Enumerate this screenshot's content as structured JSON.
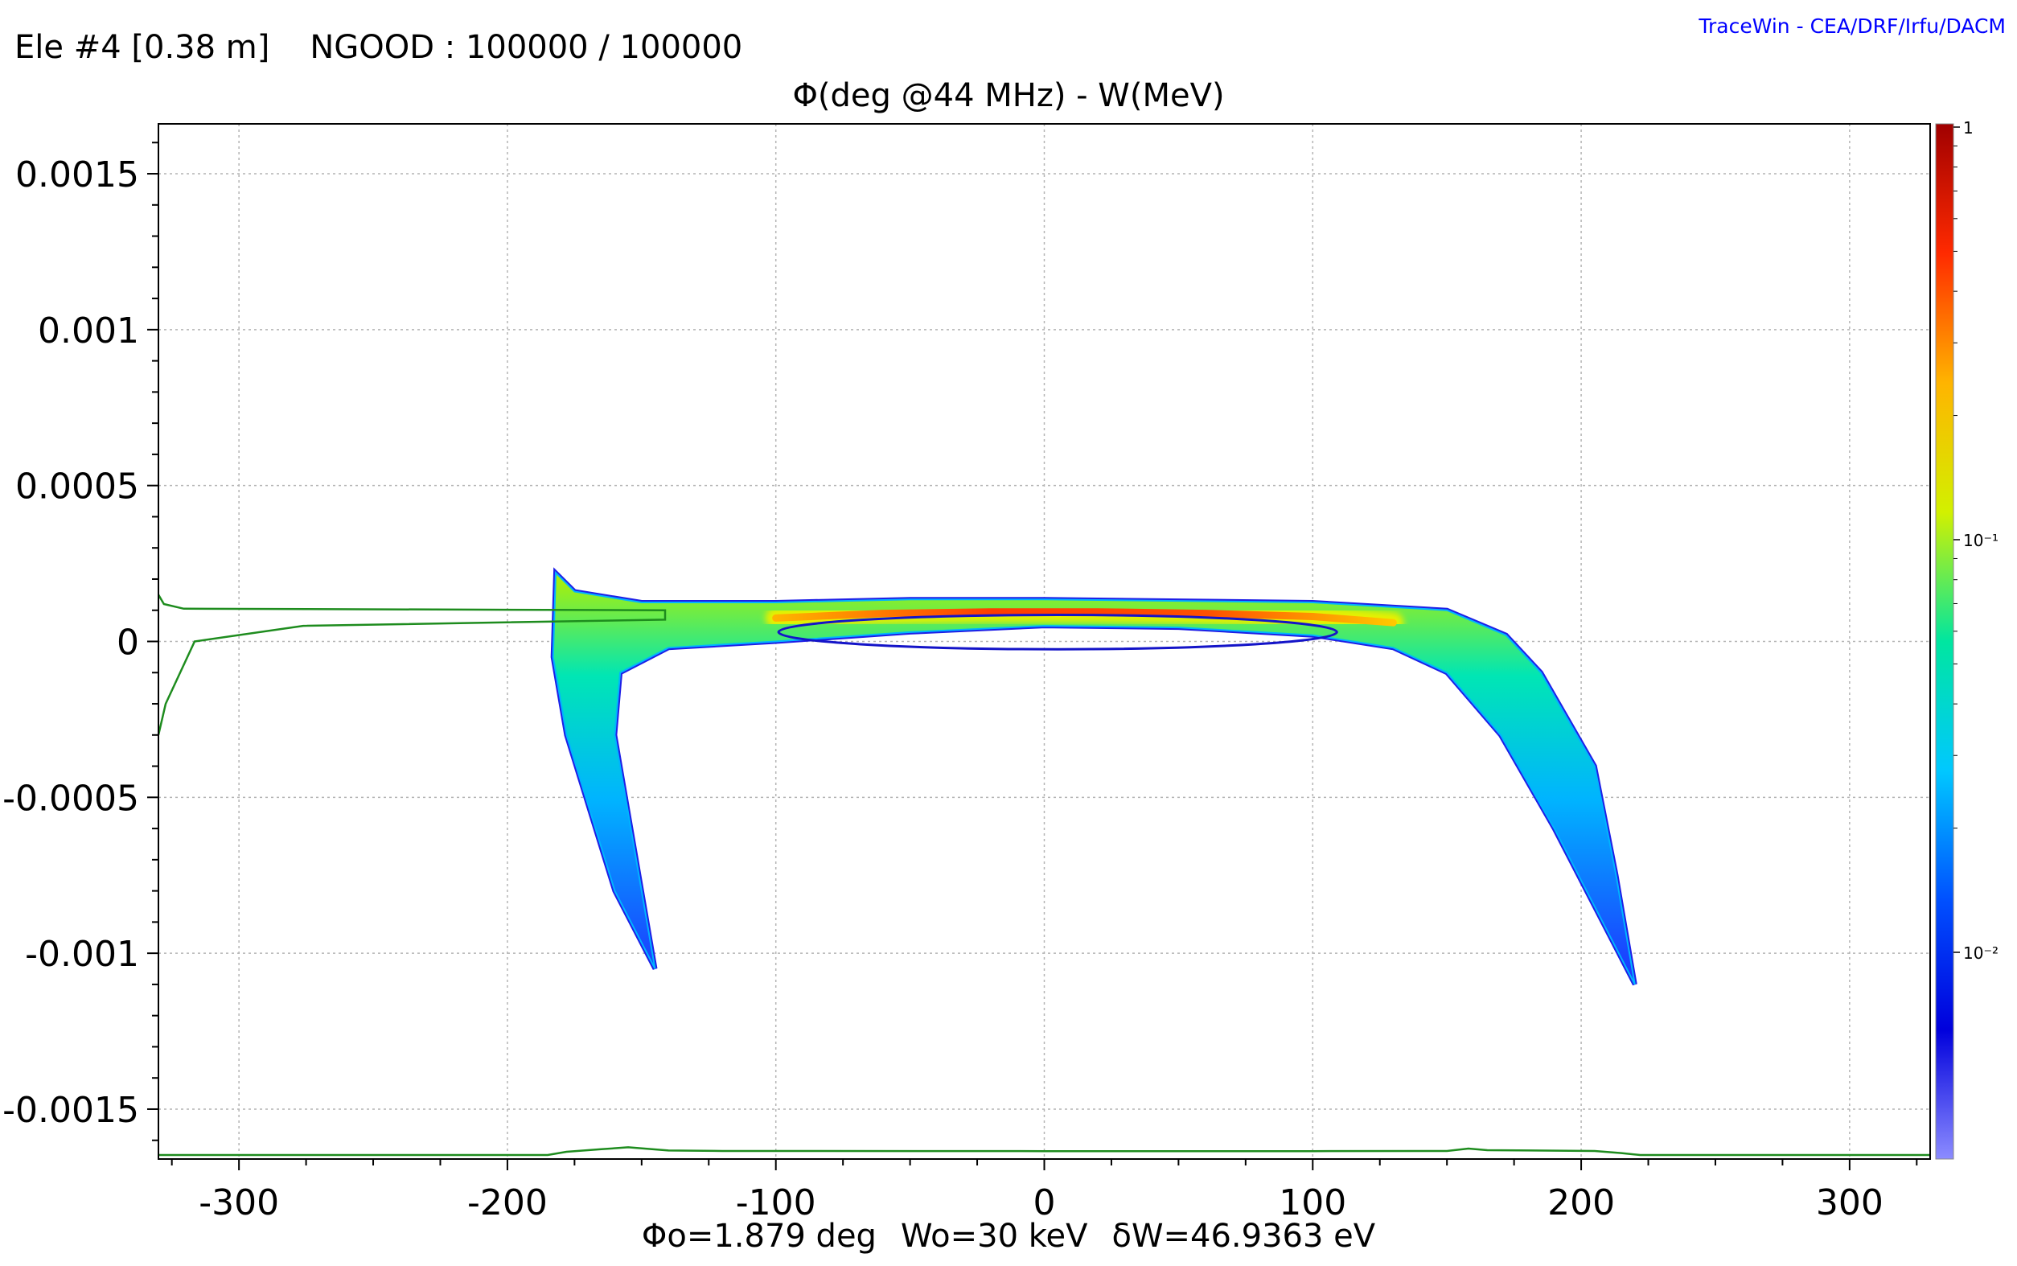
{
  "header": {
    "element": "Ele #4 [0.38 m]",
    "ngood": "NGOOD : 100000 / 100000",
    "credit": "TraceWin - CEA/DRF/Irfu/DACM"
  },
  "chart_data": {
    "type": "scatter",
    "title": "Φ(deg @44 MHz) - W(MeV)",
    "xlabel": "",
    "ylabel": "",
    "xlim": [
      -330,
      330
    ],
    "ylim": [
      -0.00166,
      0.00166
    ],
    "x_ticks": [
      -300,
      -200,
      -100,
      0,
      100,
      200,
      300
    ],
    "x_tick_labels": [
      "-300",
      "-200",
      "-100",
      "0",
      "100",
      "200",
      "300"
    ],
    "y_ticks": [
      0.0015,
      0.001,
      0.0005,
      0,
      -0.0005,
      -0.001,
      -0.0015
    ],
    "y_tick_labels": [
      "0.0015",
      "0.001",
      "0.0005",
      "0",
      "-0.0005",
      "-0.001",
      "-0.0015"
    ],
    "grid": true,
    "annotation": [
      "Φo=1.879 deg",
      "Wo=30 keV",
      "δW=46.9363 eV"
    ],
    "ellipse": {
      "center": [
        5,
        3e-05
      ],
      "half_width_phase": 104,
      "half_height_energy": 5.5e-05,
      "color": "#1414c8"
    },
    "core": {
      "points": [
        [
          -100,
          7.5e-05
        ],
        [
          -60,
          9e-05
        ],
        [
          -20,
          9.5e-05
        ],
        [
          20,
          9.5e-05
        ],
        [
          60,
          9e-05
        ],
        [
          100,
          8e-05
        ],
        [
          130,
          6e-05
        ]
      ]
    },
    "distribution": {
      "upper_edge": [
        [
          -182,
          0.00022
        ],
        [
          -175,
          0.00016
        ],
        [
          -150,
          0.000125
        ],
        [
          -100,
          0.000125
        ],
        [
          -50,
          0.000135
        ],
        [
          0,
          0.000135
        ],
        [
          50,
          0.00013
        ],
        [
          100,
          0.000125
        ],
        [
          150,
          0.0001
        ],
        [
          172,
          2e-05
        ],
        [
          185,
          -0.0001
        ],
        [
          205,
          -0.0004
        ],
        [
          213,
          -0.00075
        ],
        [
          220,
          -0.0011
        ]
      ],
      "lower_edge": [
        [
          220,
          -0.0011
        ],
        [
          208,
          -0.0009
        ],
        [
          190,
          -0.0006
        ],
        [
          170,
          -0.0003
        ],
        [
          150,
          -0.0001
        ],
        [
          130,
          -2e-05
        ],
        [
          100,
          2e-05
        ],
        [
          50,
          4.5e-05
        ],
        [
          0,
          5e-05
        ],
        [
          -50,
          3e-05
        ],
        [
          -100,
          0.0
        ],
        [
          -140,
          -2e-05
        ],
        [
          -158,
          -0.0001
        ],
        [
          -160,
          -0.0003
        ],
        [
          -148,
          -0.0009
        ],
        [
          -145,
          -0.00105
        ],
        [
          -160,
          -0.0008
        ],
        [
          -178,
          -0.0003
        ],
        [
          -183,
          -5e-05
        ]
      ],
      "fill_colors": [
        "#1e32ff",
        "#00b4ff",
        "#00e6b4",
        "#b4f000"
      ]
    },
    "profile_w": [
      [
        0.0,
        0.00015
      ],
      [
        0.15,
        0.00012
      ],
      [
        0.7,
        0.000105
      ],
      [
        14.0,
        0.0001
      ],
      [
        14.0,
        7e-05
      ],
      [
        4.0,
        5e-05
      ],
      [
        1.0,
        0.0
      ],
      [
        0.2,
        -0.0002
      ],
      [
        0.0,
        -0.0003
      ]
    ],
    "profile_phi": [
      [
        -330,
        0.0
      ],
      [
        -185,
        0.0
      ],
      [
        -178,
        0.5
      ],
      [
        -165,
        0.9
      ],
      [
        -155,
        1.2
      ],
      [
        -140,
        0.7
      ],
      [
        -120,
        0.62
      ],
      [
        0,
        0.6
      ],
      [
        100,
        0.6
      ],
      [
        150,
        0.62
      ],
      [
        158,
        1.0
      ],
      [
        165,
        0.75
      ],
      [
        205,
        0.62
      ],
      [
        215,
        0.3
      ],
      [
        222,
        0.0
      ],
      [
        330,
        0.0
      ]
    ],
    "colorbar": {
      "scale": "log",
      "ticks": [
        "1",
        "10⁻¹",
        "10⁻²"
      ],
      "colors": [
        "#a00000",
        "#ff2a00",
        "#ffb400",
        "#d2f000",
        "#00e6a0",
        "#00c8ff",
        "#0050ff",
        "#0000dc",
        "#8c8cff"
      ]
    },
    "colors": {
      "profile": "#1e8c1e",
      "grid": "#b4b4b4",
      "axis": "#000000"
    }
  }
}
